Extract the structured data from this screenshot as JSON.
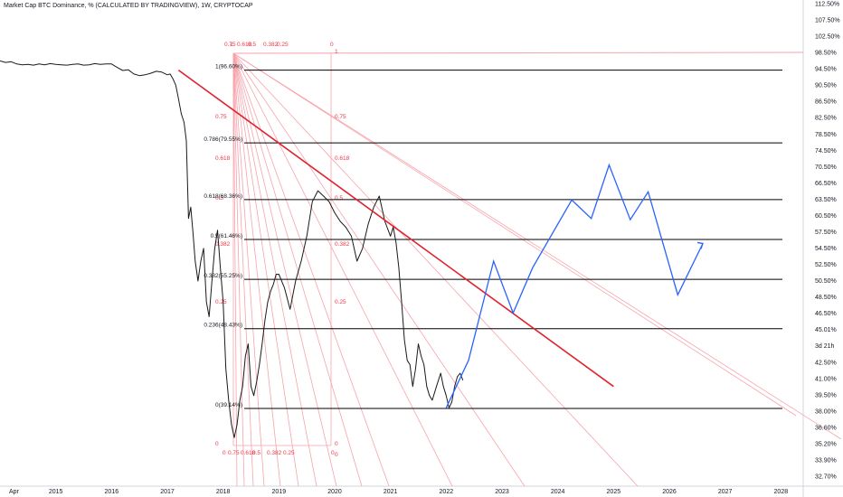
{
  "header": {
    "symbol_title": "Market Cap BTC Dominance, % (CALCULATED BY TRADINGVIEW), 1W, CRYPTOCAP"
  },
  "colors": {
    "price_line": "#1a1a1a",
    "fib_line": "#000000",
    "fan_line": "#f7a3ab",
    "fan_text": "#f23645",
    "trendline": "#e0222f",
    "projection": "#2962ff",
    "axis_text": "#131722"
  },
  "chart_data": {
    "type": "line",
    "title": "Market Cap BTC Dominance, % (CALCULATED BY TRADINGVIEW), 1W, CRYPTOCAP",
    "x_axis_labels": [
      "Apr",
      "2015",
      "2016",
      "2017",
      "2018",
      "2019",
      "2020",
      "2021",
      "2022",
      "2023",
      "2024",
      "2025",
      "2026",
      "2027",
      "2028"
    ],
    "x_axis_ticks": [
      2014.25,
      2015,
      2016,
      2017,
      2018,
      2019,
      2020,
      2021,
      2022,
      2023,
      2024,
      2025,
      2026,
      2027,
      2028
    ],
    "xlim": [
      2014.0,
      2028.4
    ],
    "y_axis_labels": [
      "112.50%",
      "107.50%",
      "102.50%",
      "98.50%",
      "94.50%",
      "90.50%",
      "86.50%",
      "82.50%",
      "78.50%",
      "74.50%",
      "70.50%",
      "66.50%",
      "63.50%",
      "60.50%",
      "57.50%",
      "54.50%",
      "52.50%",
      "50.50%",
      "48.50%",
      "46.50%",
      "45.01%",
      "3d 21h",
      "42.50%",
      "41.00%",
      "39.50%",
      "38.00%",
      "36.60%",
      "35.20%",
      "33.90%",
      "32.70%"
    ],
    "y_scale": "log",
    "ylim": [
      31.8,
      116.5
    ],
    "fib_retracement": [
      {
        "label": "1(96.60%)",
        "value": 96.6
      },
      {
        "label": "0.786(79.55%)",
        "value": 79.55
      },
      {
        "label": "0.618(68.36%)",
        "value": 68.36
      },
      {
        "label": "0.5(61.46%)",
        "value": 61.46
      },
      {
        "label": "0.382(55.25%)",
        "value": 55.25
      },
      {
        "label": "0.236(48.43%)",
        "value": 48.43
      },
      {
        "label": "0(39.14%)",
        "value": 39.14
      }
    ],
    "fan_top_labels": [
      "1",
      "0.75",
      "0.618",
      "0.5",
      "0.382",
      "0.25",
      "0"
    ],
    "fan_left_labels": [
      "0.75",
      "0.618",
      "0.5",
      "0.382",
      "0.25",
      "0"
    ],
    "fan_mid_labels": [
      "0.75",
      "0.618",
      "0.5",
      "0.382",
      "0.25",
      "0"
    ],
    "fan_bottom_labels": [
      "0",
      "0.75",
      "0.618",
      "0.5",
      "0.382",
      "0.25",
      "0"
    ],
    "fan_side_labels": [
      "1",
      "0"
    ],
    "trendline": {
      "x": [
        2017.2,
        2025.0
      ],
      "y": [
        96.6,
        41.5
      ]
    },
    "projection": {
      "x": [
        2022.0,
        2022.4,
        2022.85,
        2023.2,
        2023.55,
        2024.25,
        2024.6,
        2024.92,
        2025.3,
        2025.62,
        2026.15,
        2026.6
      ],
      "y": [
        39.2,
        44.5,
        58.0,
        50.5,
        57.0,
        68.3,
        65.0,
        75.0,
        64.8,
        69.8,
        53.0,
        60.8
      ]
    },
    "btc_dominance": {
      "name": "",
      "x": [
        2014.0,
        2014.1,
        2014.2,
        2014.3,
        2014.4,
        2014.5,
        2014.6,
        2014.7,
        2014.8,
        2014.9,
        2015.0,
        2015.1,
        2015.2,
        2015.3,
        2015.4,
        2015.5,
        2015.6,
        2015.7,
        2015.8,
        2015.9,
        2016.0,
        2016.1,
        2016.2,
        2016.3,
        2016.4,
        2016.5,
        2016.6,
        2016.7,
        2016.8,
        2016.9,
        2017.0,
        2017.05,
        2017.1,
        2017.15,
        2017.2,
        2017.25,
        2017.3,
        2017.34,
        2017.38,
        2017.42,
        2017.46,
        2017.5,
        2017.55,
        2017.6,
        2017.65,
        2017.7,
        2017.75,
        2017.8,
        2017.85,
        2017.9,
        2017.95,
        2018.0,
        2018.05,
        2018.1,
        2018.15,
        2018.2,
        2018.25,
        2018.3,
        2018.35,
        2018.4,
        2018.45,
        2018.5,
        2018.55,
        2018.6,
        2018.65,
        2018.7,
        2018.75,
        2018.8,
        2018.85,
        2018.9,
        2018.95,
        2019.0,
        2019.1,
        2019.2,
        2019.3,
        2019.4,
        2019.5,
        2019.6,
        2019.7,
        2019.8,
        2019.9,
        2020.0,
        2020.1,
        2020.2,
        2020.3,
        2020.4,
        2020.5,
        2020.6,
        2020.7,
        2020.8,
        2020.9,
        2021.0,
        2021.05,
        2021.1,
        2021.15,
        2021.2,
        2021.25,
        2021.3,
        2021.35,
        2021.4,
        2021.45,
        2021.5,
        2021.55,
        2021.6,
        2021.65,
        2021.7,
        2021.75,
        2021.8,
        2021.85,
        2021.9,
        2021.95,
        2022.0,
        2022.05,
        2022.1,
        2022.15,
        2022.2,
        2022.25,
        2022.3
      ],
      "y": [
        99.0,
        98.6,
        98.8,
        98.2,
        98.0,
        98.1,
        97.9,
        98.2,
        98.0,
        98.3,
        98.1,
        98.0,
        97.9,
        98.1,
        98.2,
        97.9,
        98.0,
        98.3,
        98.1,
        98.2,
        98.2,
        97.3,
        96.5,
        96.7,
        95.6,
        95.2,
        95.4,
        95.8,
        96.3,
        96.1,
        95.4,
        95.6,
        94.4,
        92.8,
        89.5,
        86.0,
        84.0,
        80.0,
        65.0,
        67.0,
        62.5,
        58.0,
        55.0,
        58.0,
        60.0,
        52.0,
        50.0,
        55.0,
        60.0,
        63.0,
        57.0,
        52.0,
        43.5,
        40.0,
        37.5,
        36.2,
        37.5,
        40.0,
        41.5,
        45.0,
        46.5,
        41.5,
        40.5,
        42.0,
        44.0,
        46.5,
        49.5,
        52.0,
        53.5,
        54.5,
        56.0,
        56.0,
        54.0,
        51.0,
        55.0,
        58.0,
        62.0,
        68.0,
        70.0,
        69.0,
        68.0,
        66.0,
        64.5,
        63.5,
        62.0,
        58.0,
        60.0,
        64.0,
        67.0,
        69.0,
        64.5,
        62.0,
        63.5,
        61.0,
        57.0,
        52.0,
        47.0,
        44.5,
        44.0,
        41.5,
        43.5,
        46.5,
        45.0,
        44.0,
        41.5,
        40.5,
        40.0,
        41.0,
        42.0,
        43.0,
        41.5,
        40.5,
        39.2,
        39.8,
        41.5,
        42.6,
        43.0,
        42.2
      ]
    }
  }
}
